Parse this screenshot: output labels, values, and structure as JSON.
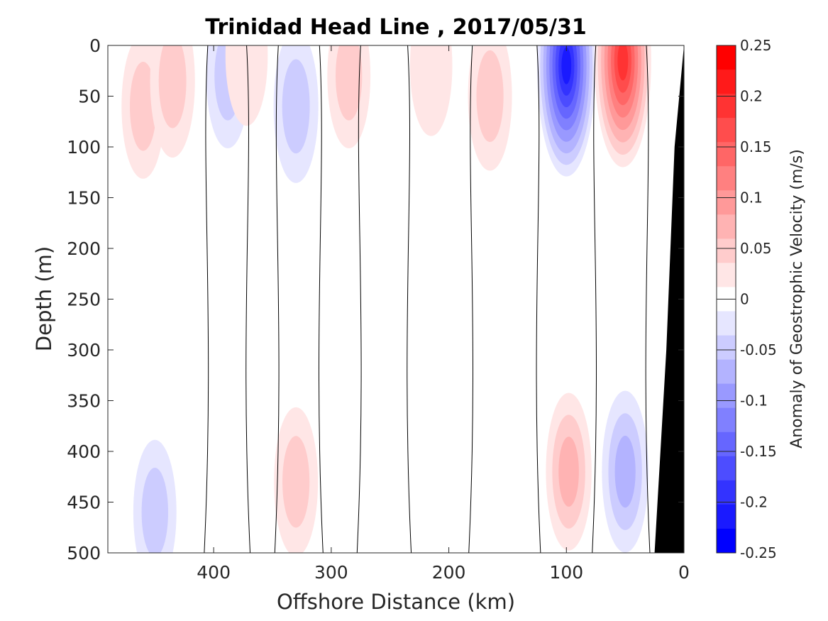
{
  "chart_data": {
    "type": "heatmap",
    "title": "Trinidad Head Line , 2017/05/31",
    "xlabel": "Offshore Distance (km)",
    "ylabel": "Depth (m)",
    "xlim": [
      490,
      0
    ],
    "ylim": [
      0,
      500
    ],
    "x_reversed": true,
    "y_reversed": true,
    "x_ticks": [
      400,
      300,
      200,
      100,
      0
    ],
    "y_ticks": [
      0,
      50,
      100,
      150,
      200,
      250,
      300,
      350,
      400,
      450,
      500
    ],
    "colorbar": {
      "label": "Anomaly of Geostrophic Velocity (m/s)",
      "ticks": [
        0.25,
        0.2,
        0.15,
        0.1,
        0.05,
        0,
        -0.05,
        -0.1,
        -0.15,
        -0.2,
        -0.25
      ],
      "range": [
        -0.25,
        0.25
      ],
      "levels": [
        -0.25,
        -0.225,
        -0.2,
        -0.175,
        -0.15,
        -0.125,
        -0.1,
        -0.075,
        -0.05,
        -0.025,
        0.025,
        0.05,
        0.075,
        0.1,
        0.125,
        0.15,
        0.175,
        0.2,
        0.225,
        0.25
      ],
      "color_negative": "#0000ff",
      "color_positive": "#ff0000",
      "color_zero": "#ffffff"
    },
    "grid": false,
    "topography_color": "#000000",
    "bottom_profile": [
      [
        25,
        500
      ],
      [
        15,
        300
      ],
      [
        8,
        100
      ],
      [
        0,
        0
      ]
    ],
    "features": [
      {
        "x": 460,
        "depth": 60,
        "value": 0.04
      },
      {
        "x": 435,
        "depth": 35,
        "value": 0.06
      },
      {
        "x": 388,
        "depth": 30,
        "value": -0.04
      },
      {
        "x": 372,
        "depth": 10,
        "value": 0.03
      },
      {
        "x": 330,
        "depth": 60,
        "value": -0.06
      },
      {
        "x": 285,
        "depth": 30,
        "value": 0.04
      },
      {
        "x": 215,
        "depth": 20,
        "value": 0.03
      },
      {
        "x": 165,
        "depth": 50,
        "value": 0.05
      },
      {
        "x": 100,
        "depth": 20,
        "value": -0.22
      },
      {
        "x": 52,
        "depth": 15,
        "value": 0.2
      },
      {
        "x": 98,
        "depth": 420,
        "value": 0.07
      },
      {
        "x": 50,
        "depth": 420,
        "value": -0.08
      },
      {
        "x": 330,
        "depth": 430,
        "value": 0.05
      },
      {
        "x": 450,
        "depth": 460,
        "value": -0.04
      }
    ]
  }
}
